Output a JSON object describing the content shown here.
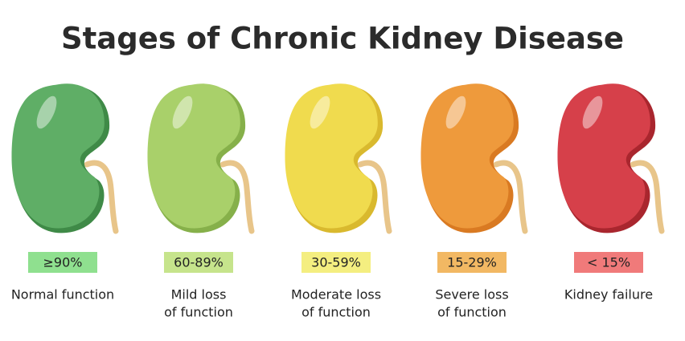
{
  "title": "Stages of Chronic Kidney Disease",
  "stages": [
    {
      "label": "≥90%",
      "description": [
        "Normal function"
      ]
    },
    {
      "label": "60-89%",
      "description": [
        "Mild loss",
        "of function"
      ]
    },
    {
      "label": "30-59%",
      "description": [
        "Moderate loss",
        "of function"
      ]
    },
    {
      "label": "15-29%",
      "description": [
        "Severe loss",
        "of function"
      ]
    },
    {
      "label": "< 15%",
      "description": [
        "Kidney failure"
      ]
    }
  ]
}
